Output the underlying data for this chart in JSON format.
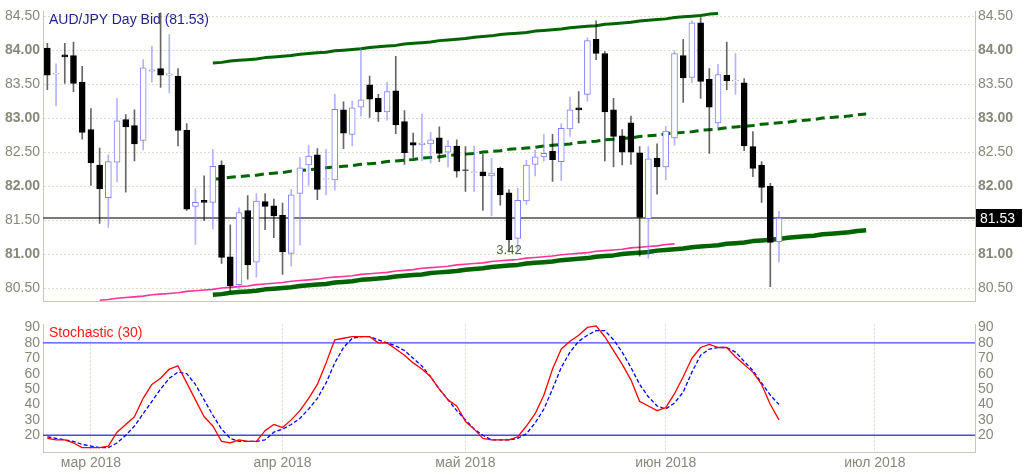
{
  "chart_data": [
    {
      "type": "candlestick",
      "title": "AUD/JPY Day Bid (81.53)",
      "categories": [
        null,
        null,
        null,
        null,
        null,
        null,
        null,
        null,
        null,
        null,
        null,
        null,
        null,
        null,
        null,
        null,
        null,
        null,
        null,
        null,
        null,
        null,
        null,
        null,
        null,
        null,
        null,
        null,
        null,
        null,
        null,
        null,
        null,
        null,
        null,
        null,
        null,
        null,
        null,
        null,
        null,
        null,
        null,
        null,
        null,
        null,
        null,
        null,
        null,
        null,
        null,
        null,
        null,
        null,
        null,
        null,
        null,
        null,
        null,
        null,
        null,
        null,
        null,
        null,
        null,
        null,
        null,
        null,
        null,
        null,
        null,
        null,
        null,
        null,
        null,
        null,
        null,
        null,
        null,
        null,
        null,
        null,
        null,
        null,
        null,
        null,
        null,
        null,
        null,
        null,
        null,
        null,
        null,
        null,
        null,
        null,
        null,
        null,
        null,
        null,
        null,
        null,
        null,
        null,
        null,
        null,
        null
      ],
      "ohlc": [
        [
          84.03,
          84.1,
          83.42,
          83.63
        ],
        [
          83.65,
          83.8,
          83.18,
          83.66
        ],
        [
          83.93,
          84.1,
          83.51,
          83.9
        ],
        [
          83.92,
          84.12,
          83.39,
          83.51
        ],
        [
          83.53,
          83.76,
          82.69,
          82.79
        ],
        [
          82.83,
          83.14,
          82.01,
          82.34
        ],
        [
          82.31,
          82.56,
          81.45,
          81.96
        ],
        [
          81.83,
          82.46,
          81.39,
          82.36
        ],
        [
          82.35,
          83.29,
          82.06,
          82.96
        ],
        [
          82.98,
          83.05,
          81.91,
          82.87
        ],
        [
          82.89,
          83.12,
          82.37,
          82.62
        ],
        [
          82.67,
          83.86,
          82.53,
          83.74
        ],
        [
          83.69,
          84.06,
          83.53,
          83.71
        ],
        [
          83.73,
          84.55,
          83.45,
          83.63
        ],
        [
          83.63,
          84.23,
          83.37,
          83.65
        ],
        [
          83.62,
          83.73,
          82.59,
          82.82
        ],
        [
          82.82,
          82.92,
          81.64,
          81.66
        ],
        [
          81.7,
          81.96,
          81.14,
          81.76
        ],
        [
          81.79,
          82.15,
          81.49,
          81.76
        ],
        [
          81.76,
          82.54,
          81.37,
          82.29
        ],
        [
          82.31,
          82.37,
          80.86,
          80.95
        ],
        [
          80.96,
          81.43,
          80.45,
          80.53
        ],
        [
          80.55,
          81.68,
          80.48,
          81.61
        ],
        [
          81.64,
          81.86,
          80.63,
          80.84
        ],
        [
          80.88,
          81.89,
          80.66,
          81.78
        ],
        [
          81.77,
          81.89,
          81.36,
          81.7
        ],
        [
          81.71,
          81.81,
          81.24,
          81.56
        ],
        [
          81.57,
          81.75,
          80.7,
          81.03
        ],
        [
          81.01,
          81.95,
          80.82,
          81.87
        ],
        [
          81.89,
          82.42,
          81.13,
          82.27
        ],
        [
          82.31,
          82.6,
          82.01,
          82.44
        ],
        [
          82.46,
          82.55,
          81.8,
          81.95
        ],
        [
          82.1,
          82.54,
          81.87,
          82.11
        ],
        [
          82.09,
          83.35,
          81.94,
          83.13
        ],
        [
          83.12,
          83.24,
          82.55,
          82.78
        ],
        [
          82.76,
          83.25,
          82.59,
          83.15
        ],
        [
          83.16,
          84.02,
          83.03,
          83.27
        ],
        [
          83.49,
          83.62,
          83.01,
          83.28
        ],
        [
          83.29,
          83.35,
          82.95,
          83.09
        ],
        [
          83.09,
          83.53,
          82.97,
          83.39
        ],
        [
          83.4,
          83.91,
          82.77,
          82.9
        ],
        [
          82.95,
          83.11,
          82.32,
          82.49
        ],
        [
          82.64,
          82.78,
          82.42,
          82.6
        ],
        [
          82.61,
          83.06,
          82.37,
          82.63
        ],
        [
          82.62,
          82.79,
          82.34,
          82.68
        ],
        [
          82.71,
          82.87,
          82.36,
          82.48
        ],
        [
          82.5,
          82.67,
          82.28,
          82.59
        ],
        [
          82.59,
          82.68,
          82.13,
          82.22
        ],
        [
          82.24,
          82.58,
          81.92,
          82.23
        ],
        [
          82.2,
          82.59,
          81.92,
          82.21
        ],
        [
          82.21,
          82.47,
          81.64,
          82.15
        ],
        [
          82.15,
          82.41,
          81.56,
          82.19
        ],
        [
          82.26,
          82.28,
          81.72,
          81.87
        ],
        [
          81.9,
          81.95,
          81.03,
          81.21
        ],
        [
          81.23,
          81.97,
          81.03,
          81.79
        ],
        [
          81.78,
          82.38,
          81.73,
          82.31
        ],
        [
          82.32,
          82.53,
          82.15,
          82.43
        ],
        [
          82.43,
          82.76,
          82.37,
          82.48
        ],
        [
          82.51,
          82.76,
          82.07,
          82.39
        ],
        [
          82.36,
          82.92,
          82.08,
          82.85
        ],
        [
          82.84,
          83.31,
          82.73,
          83.12
        ],
        [
          83.15,
          83.39,
          82.93,
          83.12
        ],
        [
          83.35,
          84.18,
          83.25,
          84.14
        ],
        [
          84.16,
          84.43,
          83.86,
          83.95
        ],
        [
          83.95,
          83.98,
          82.37,
          83.09
        ],
        [
          83.12,
          83.29,
          82.28,
          82.73
        ],
        [
          82.74,
          82.83,
          82.31,
          82.5
        ],
        [
          82.93,
          83.03,
          82.32,
          82.5
        ],
        [
          82.49,
          82.58,
          80.97,
          81.54
        ],
        [
          81.52,
          82.58,
          80.94,
          82.4
        ],
        [
          82.41,
          82.62,
          81.88,
          82.28
        ],
        [
          82.28,
          82.88,
          82.09,
          82.81
        ],
        [
          82.71,
          83.99,
          82.6,
          83.95
        ],
        [
          83.92,
          84.16,
          83.23,
          83.59
        ],
        [
          83.6,
          84.43,
          83.52,
          84.4
        ],
        [
          84.4,
          84.48,
          83.29,
          83.54
        ],
        [
          83.57,
          83.73,
          82.48,
          83.16
        ],
        [
          82.93,
          83.79,
          82.86,
          83.64
        ],
        [
          83.63,
          84.12,
          83.42,
          83.55
        ],
        [
          83.55,
          83.95,
          83.35,
          83.56
        ],
        [
          83.52,
          83.58,
          82.52,
          82.59
        ],
        [
          82.58,
          82.8,
          82.14,
          82.26
        ],
        [
          82.31,
          82.36,
          81.76,
          81.98
        ],
        [
          82.0,
          82.04,
          80.52,
          81.17
        ],
        [
          81.18,
          81.63,
          80.88,
          81.53
        ],
        null,
        null,
        null,
        null,
        null,
        null,
        null,
        null,
        null,
        null,
        null,
        null,
        null,
        null,
        null,
        null,
        null,
        null,
        null,
        null,
        null,
        null
      ],
      "colors": [
        "#000000",
        "#8080ff",
        "#000000",
        "#000000",
        "#000000",
        "#000000",
        "#000000",
        "#8080ff",
        "#8080ff",
        "#000000",
        "#000000",
        "#8080ff",
        "#8080ff",
        "#000000",
        "#8080ff",
        "#000000",
        "#000000",
        "#8080ff",
        "#000000",
        "#8080ff",
        "#000000",
        "#000000",
        "#8080ff",
        "#000000",
        "#8080ff",
        "#000000",
        "#000000",
        "#000000",
        "#8080ff",
        "#8080ff",
        "#8080ff",
        "#000000",
        "#8080ff",
        "#8080ff",
        "#000000",
        "#8080ff",
        "#8080ff",
        "#000000",
        "#000000",
        "#8080ff",
        "#000000",
        "#000000",
        "#000000",
        "#8080ff",
        "#8080ff",
        "#000000",
        "#8080ff",
        "#000000",
        "#000000",
        "#8080ff",
        "#000000",
        "#8080ff",
        "#000000",
        "#000000",
        "#8080ff",
        "#8080ff",
        "#8080ff",
        "#8080ff",
        "#000000",
        "#8080ff",
        "#8080ff",
        "#000000",
        "#8080ff",
        "#000000",
        "#000000",
        "#000000",
        "#000000",
        "#000000",
        "#000000",
        "#8080ff",
        "#000000",
        "#8080ff",
        "#8080ff",
        "#000000",
        "#8080ff",
        "#000000",
        "#000000",
        "#8080ff",
        "#000000",
        "#8080ff",
        "#000000",
        "#000000",
        "#000000",
        "#000000",
        "#8080ff",
        null,
        null,
        null,
        null,
        null,
        null,
        null,
        null,
        null,
        null,
        null,
        null,
        null,
        null,
        null,
        null,
        null,
        null,
        null,
        null,
        null,
        null
      ],
      "series": [
        {
          "type": "line",
          "color": "#006400",
          "values": [
            null,
            null,
            null,
            null,
            null,
            null,
            null,
            null,
            null,
            null,
            null,
            null,
            null,
            null,
            null,
            null,
            null,
            null,
            null,
            83.81,
            83.82,
            83.84,
            83.85,
            83.86,
            83.87,
            83.89,
            83.9,
            83.91,
            83.92,
            83.94,
            83.95,
            83.96,
            83.97,
            83.99,
            84.0,
            84.01,
            84.02,
            84.04,
            84.05,
            84.06,
            84.07,
            84.09,
            84.1,
            84.11,
            84.12,
            84.14,
            84.15,
            84.16,
            84.17,
            84.19,
            84.2,
            84.21,
            84.23,
            84.24,
            84.25,
            84.26,
            84.28,
            84.29,
            84.3,
            84.31,
            84.33,
            84.34,
            84.35,
            84.36,
            84.38,
            84.39,
            84.4,
            84.41,
            84.43,
            84.44,
            84.45,
            84.46,
            84.48,
            84.49,
            84.5,
            84.51,
            84.53,
            84.54,
            null,
            null,
            null,
            null,
            null,
            null,
            null,
            null,
            null,
            null,
            null,
            null,
            null,
            null,
            null,
            null,
            null,
            null,
            null,
            null,
            null,
            null,
            null,
            null,
            null,
            null,
            null,
            null,
            null
          ]
        },
        {
          "type": "line",
          "color": "#006400",
          "line_style": "dashed",
          "values": [
            null,
            null,
            null,
            null,
            null,
            null,
            null,
            null,
            null,
            null,
            null,
            null,
            null,
            null,
            null,
            null,
            null,
            null,
            null,
            82.1,
            82.11,
            82.13,
            82.14,
            82.15,
            82.16,
            82.18,
            82.19,
            82.2,
            82.22,
            82.23,
            82.24,
            82.25,
            82.27,
            82.28,
            82.29,
            82.3,
            82.32,
            82.33,
            82.34,
            82.36,
            82.37,
            82.38,
            82.39,
            82.41,
            82.42,
            82.43,
            82.45,
            82.46,
            82.47,
            82.48,
            82.5,
            82.51,
            82.52,
            82.54,
            82.55,
            82.56,
            82.57,
            82.59,
            82.6,
            82.61,
            82.62,
            82.64,
            82.65,
            82.66,
            82.68,
            82.69,
            82.7,
            82.71,
            82.73,
            82.74,
            82.75,
            82.77,
            82.78,
            82.79,
            82.8,
            82.82,
            82.83,
            82.84,
            82.86,
            82.87,
            82.88,
            82.89,
            82.91,
            82.92,
            82.93,
            82.94,
            82.96,
            82.97,
            82.98,
            83.0,
            83.01,
            83.02,
            83.03,
            83.05,
            83.06,
            null,
            null,
            null,
            null,
            null,
            null,
            null,
            null,
            null,
            null,
            null,
            null
          ]
        },
        {
          "type": "line",
          "color": "#006400",
          "values": [
            null,
            null,
            null,
            null,
            null,
            null,
            null,
            null,
            null,
            null,
            null,
            null,
            null,
            null,
            null,
            null,
            null,
            null,
            null,
            80.4,
            80.41,
            80.43,
            80.44,
            80.45,
            80.46,
            80.48,
            80.49,
            80.5,
            80.51,
            80.53,
            80.54,
            80.55,
            80.56,
            80.58,
            80.59,
            80.6,
            80.62,
            80.63,
            80.64,
            80.65,
            80.67,
            80.68,
            80.69,
            80.7,
            80.72,
            80.73,
            80.74,
            80.75,
            80.77,
            80.78,
            80.79,
            80.81,
            80.82,
            80.83,
            80.84,
            80.86,
            80.87,
            80.88,
            80.89,
            80.91,
            80.92,
            80.93,
            80.94,
            80.96,
            80.97,
            80.98,
            81.0,
            81.01,
            81.02,
            81.03,
            81.05,
            81.06,
            81.07,
            81.08,
            81.1,
            81.11,
            81.12,
            81.13,
            81.15,
            81.16,
            81.17,
            81.19,
            81.2,
            81.21,
            81.22,
            81.24,
            81.25,
            81.26,
            81.27,
            81.29,
            81.3,
            81.31,
            81.32,
            81.34,
            81.35,
            null,
            null,
            null,
            null,
            null,
            null,
            null,
            null,
            null,
            null,
            null,
            null
          ]
        },
        {
          "type": "line",
          "color": "#ff3399",
          "values": [
            null,
            null,
            null,
            null,
            null,
            null,
            80.32,
            80.33,
            80.35,
            80.36,
            80.37,
            80.38,
            80.4,
            80.41,
            80.42,
            80.43,
            80.45,
            80.46,
            80.47,
            80.48,
            80.5,
            80.51,
            80.52,
            80.53,
            80.55,
            80.56,
            80.57,
            80.58,
            80.6,
            80.61,
            80.62,
            80.63,
            80.65,
            80.66,
            80.67,
            80.68,
            80.7,
            80.71,
            80.72,
            80.73,
            80.75,
            80.76,
            80.77,
            80.79,
            80.8,
            80.81,
            80.82,
            80.84,
            80.85,
            80.86,
            80.87,
            80.89,
            80.9,
            80.91,
            80.92,
            80.94,
            80.95,
            80.96,
            80.97,
            80.99,
            81.0,
            81.01,
            81.02,
            81.04,
            81.05,
            81.06,
            81.07,
            81.09,
            81.1,
            81.11,
            81.12,
            81.14,
            81.15,
            null,
            null,
            null,
            null,
            null,
            null,
            null,
            null,
            null,
            null,
            null,
            null,
            null,
            null,
            null,
            null,
            null,
            null,
            null,
            null,
            null,
            null,
            null,
            null,
            null,
            null,
            null,
            null,
            null,
            null,
            null,
            null,
            null,
            null
          ]
        }
      ],
      "ylim": [
        80.3,
        84.57
      ],
      "yticks": [
        {
          "value": 80.5,
          "label": "80.50"
        },
        {
          "value": 81,
          "label": "81.00"
        },
        {
          "value": 81.5,
          "label": "81.50"
        },
        {
          "value": 82,
          "label": "82.00"
        },
        {
          "value": 82.5,
          "label": "82.50"
        },
        {
          "value": 83,
          "label": "83.00"
        },
        {
          "value": 83.5,
          "label": "83.50"
        },
        {
          "value": 84,
          "label": "84.00"
        },
        {
          "value": 84.5,
          "label": "84.50"
        }
      ],
      "y2lim": [
        80.3,
        84.57
      ],
      "y2ticks": [
        {
          "value": 80.5,
          "label": "80.50"
        },
        {
          "value": 81,
          "label": "81.00"
        },
        {
          "value": 82,
          "label": "82.00"
        },
        {
          "value": 82.5,
          "label": "82.50"
        },
        {
          "value": 83,
          "label": "83.00"
        },
        {
          "value": 83.5,
          "label": "83.50"
        },
        {
          "value": 84,
          "label": "84.00"
        },
        {
          "value": 84.5,
          "label": "84.50"
        }
      ],
      "grid": "y",
      "ref_lines": [
        {
          "axis": "y",
          "value": 81.53,
          "label": "81.53",
          "color": "#4d4d4d"
        }
      ],
      "annotations": [
        {
          "text": "3.42",
          "y": 80.95
        }
      ]
    },
    {
      "type": "line",
      "title": "Stochastic (30)",
      "categories": [
        null,
        null,
        null,
        null,
        null,
        "мар 2018",
        null,
        null,
        null,
        null,
        null,
        null,
        null,
        null,
        null,
        null,
        null,
        null,
        null,
        null,
        null,
        null,
        null,
        null,
        null,
        null,
        null,
        "апр 2018",
        null,
        null,
        null,
        null,
        null,
        null,
        null,
        null,
        null,
        null,
        null,
        null,
        null,
        null,
        null,
        null,
        null,
        null,
        null,
        null,
        "май 2018",
        null,
        null,
        null,
        null,
        null,
        null,
        null,
        null,
        null,
        null,
        null,
        null,
        null,
        null,
        null,
        null,
        null,
        null,
        null,
        null,
        null,
        null,
        "июн 2018",
        null,
        null,
        null,
        null,
        null,
        null,
        null,
        null,
        null,
        null,
        null,
        null,
        null,
        null,
        null,
        null,
        null,
        null,
        null,
        null,
        null,
        null,
        null,
        "июл 2018",
        null,
        null,
        null,
        null,
        null,
        null,
        null,
        null,
        null,
        null,
        null
      ],
      "series": [
        {
          "color": "#ff0000",
          "values": [
            18,
            17,
            17,
            15,
            12,
            12,
            12,
            13,
            22,
            27,
            32,
            44,
            53,
            57,
            63,
            65,
            54,
            43,
            32,
            26,
            16,
            15,
            17,
            16,
            16,
            23,
            27,
            25,
            30,
            36,
            44,
            53,
            67,
            82,
            83,
            84,
            84,
            84,
            80,
            80,
            76,
            72,
            67,
            63,
            58,
            50,
            43,
            39,
            29,
            24,
            18,
            17,
            17,
            17,
            19,
            26,
            34,
            46,
            63,
            76,
            81,
            85,
            90,
            91,
            84,
            75,
            66,
            56,
            42,
            39,
            36,
            38,
            47,
            58,
            70,
            77,
            79,
            77,
            77,
            71,
            66,
            61,
            53,
            40,
            30,
            null,
            null,
            null,
            null,
            null,
            null,
            null,
            null,
            null,
            null,
            null,
            null,
            null,
            null,
            null,
            null,
            null,
            null,
            null,
            null,
            null,
            null
          ]
        },
        {
          "color": "#0000ff",
          "line_style": "dashed",
          "values": [
            19,
            18,
            17,
            16,
            14,
            13,
            12,
            12,
            15,
            20,
            26,
            34,
            42,
            50,
            57,
            61,
            60,
            53,
            43,
            33,
            24,
            18,
            16,
            16,
            16,
            17,
            22,
            24,
            27,
            31,
            37,
            44,
            54,
            67,
            77,
            83,
            84,
            84,
            82,
            80,
            78,
            75,
            70,
            65,
            58,
            50,
            43,
            36,
            30,
            24,
            20,
            17,
            17,
            17,
            18,
            21,
            28,
            37,
            50,
            64,
            74,
            81,
            85,
            88,
            88,
            82,
            74,
            64,
            53,
            45,
            39,
            37,
            41,
            48,
            61,
            72,
            76,
            77,
            77,
            74,
            68,
            62,
            54,
            46,
            40,
            null,
            null,
            null,
            null,
            null,
            null,
            null,
            null,
            null,
            null,
            null,
            null,
            null,
            null,
            null,
            null,
            null,
            null,
            null,
            null,
            null,
            null
          ]
        }
      ],
      "ylim": [
        9,
        92
      ],
      "yticks": [
        20,
        30,
        40,
        50,
        60,
        70,
        80,
        90
      ],
      "y2lim": [
        9,
        92
      ],
      "y2ticks": [
        20,
        30,
        40,
        50,
        60,
        70,
        80,
        90
      ],
      "grid": "x",
      "ref_lines": [
        {
          "axis": "y",
          "value": 80,
          "color": "#4646ff"
        },
        {
          "axis": "y",
          "value": 20,
          "color": "#4646ff"
        }
      ]
    }
  ]
}
